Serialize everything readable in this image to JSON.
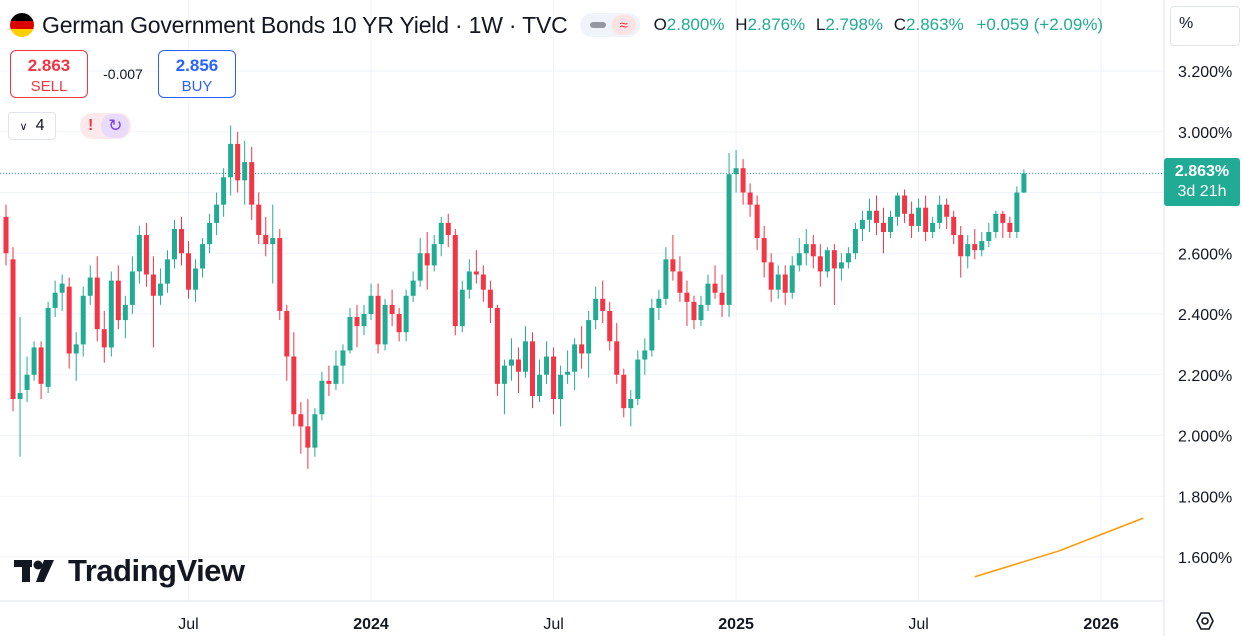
{
  "header": {
    "title": "German Government Bonds 10 YR Yield · 1W · TVC",
    "open_label": "O",
    "open": "2.800%",
    "high_label": "H",
    "high": "2.876%",
    "low_label": "L",
    "low": "2.798%",
    "close_label": "C",
    "close": "2.863%",
    "change": "+0.059 (+2.09%)",
    "flag_colors": [
      "#000000",
      "#dd0000",
      "#ffce00"
    ]
  },
  "trade": {
    "sell_price": "2.863",
    "sell_label": "SELL",
    "spread": "-0.007",
    "buy_price": "2.856",
    "buy_label": "BUY"
  },
  "indicators": {
    "count": "4",
    "alert_icon": "exclamation-icon",
    "sync_icon": "sync-icon"
  },
  "price_scale": {
    "unit": "%",
    "last_price": "2.863%",
    "countdown": "3d 21h"
  },
  "logo": {
    "text": "TradingView"
  },
  "colors": {
    "up": "#22ab94",
    "down": "#f23645",
    "ma": "#ff9800",
    "grid": "#f0f3fa"
  },
  "chart_data": {
    "type": "candlestick",
    "interval": "1W",
    "y_unit": "%",
    "ylim": [
      1.52,
      3.32
    ],
    "yticks": [
      "3.200%",
      "3.000%",
      "2.800%",
      "2.600%",
      "2.400%",
      "2.200%",
      "2.000%",
      "1.800%",
      "1.600%"
    ],
    "ytick_values": [
      3.2,
      3.0,
      2.8,
      2.6,
      2.4,
      2.2,
      2.0,
      1.8,
      1.6
    ],
    "xticks": [
      "Jul",
      "2024",
      "Jul",
      "2025",
      "Jul",
      "2026"
    ],
    "xtick_bold": [
      false,
      true,
      false,
      true,
      false,
      true
    ],
    "xtick_index": [
      26,
      52,
      78,
      104,
      130,
      156
    ],
    "last_price_line": 2.863,
    "ohlc": [
      [
        2.72,
        2.76,
        2.56,
        2.6
      ],
      [
        2.58,
        2.62,
        2.08,
        2.12
      ],
      [
        2.12,
        2.39,
        1.93,
        2.14
      ],
      [
        2.15,
        2.26,
        2.11,
        2.2
      ],
      [
        2.2,
        2.31,
        2.18,
        2.29
      ],
      [
        2.29,
        2.31,
        2.12,
        2.17
      ],
      [
        2.16,
        2.44,
        2.14,
        2.42
      ],
      [
        2.42,
        2.51,
        2.39,
        2.47
      ],
      [
        2.47,
        2.53,
        2.41,
        2.5
      ],
      [
        2.49,
        2.52,
        2.22,
        2.27
      ],
      [
        2.27,
        2.34,
        2.18,
        2.3
      ],
      [
        2.3,
        2.49,
        2.26,
        2.46
      ],
      [
        2.46,
        2.56,
        2.43,
        2.52
      ],
      [
        2.52,
        2.59,
        2.31,
        2.35
      ],
      [
        2.35,
        2.41,
        2.24,
        2.29
      ],
      [
        2.29,
        2.54,
        2.26,
        2.51
      ],
      [
        2.51,
        2.56,
        2.35,
        2.38
      ],
      [
        2.38,
        2.46,
        2.32,
        2.43
      ],
      [
        2.43,
        2.59,
        2.4,
        2.54
      ],
      [
        2.54,
        2.69,
        2.5,
        2.66
      ],
      [
        2.66,
        2.7,
        2.49,
        2.53
      ],
      [
        2.53,
        2.59,
        2.29,
        2.46
      ],
      [
        2.46,
        2.55,
        2.43,
        2.5
      ],
      [
        2.5,
        2.61,
        2.47,
        2.58
      ],
      [
        2.58,
        2.71,
        2.55,
        2.68
      ],
      [
        2.68,
        2.72,
        2.56,
        2.6
      ],
      [
        2.6,
        2.64,
        2.45,
        2.48
      ],
      [
        2.48,
        2.58,
        2.44,
        2.55
      ],
      [
        2.55,
        2.65,
        2.52,
        2.63
      ],
      [
        2.63,
        2.73,
        2.6,
        2.7
      ],
      [
        2.7,
        2.8,
        2.66,
        2.76
      ],
      [
        2.76,
        2.88,
        2.72,
        2.85
      ],
      [
        2.85,
        3.02,
        2.79,
        2.96
      ],
      [
        2.96,
        3.0,
        2.8,
        2.84
      ],
      [
        2.84,
        2.97,
        2.76,
        2.9
      ],
      [
        2.9,
        2.95,
        2.71,
        2.76
      ],
      [
        2.76,
        2.8,
        2.63,
        2.66
      ],
      [
        2.66,
        2.72,
        2.59,
        2.63
      ],
      [
        2.63,
        2.76,
        2.5,
        2.65
      ],
      [
        2.65,
        2.68,
        2.38,
        2.41
      ],
      [
        2.41,
        2.43,
        2.18,
        2.26
      ],
      [
        2.26,
        2.34,
        2.03,
        2.07
      ],
      [
        2.07,
        2.11,
        1.94,
        2.03
      ],
      [
        2.03,
        2.12,
        1.89,
        1.96
      ],
      [
        1.96,
        2.09,
        1.93,
        2.07
      ],
      [
        2.07,
        2.21,
        2.05,
        2.18
      ],
      [
        2.18,
        2.23,
        2.13,
        2.17
      ],
      [
        2.17,
        2.28,
        2.15,
        2.23
      ],
      [
        2.23,
        2.3,
        2.17,
        2.28
      ],
      [
        2.28,
        2.42,
        2.27,
        2.39
      ],
      [
        2.39,
        2.43,
        2.29,
        2.36
      ],
      [
        2.36,
        2.43,
        2.33,
        2.4
      ],
      [
        2.4,
        2.5,
        2.38,
        2.46
      ],
      [
        2.46,
        2.5,
        2.27,
        2.3
      ],
      [
        2.3,
        2.45,
        2.28,
        2.43
      ],
      [
        2.43,
        2.48,
        2.36,
        2.4
      ],
      [
        2.4,
        2.42,
        2.31,
        2.34
      ],
      [
        2.34,
        2.48,
        2.31,
        2.46
      ],
      [
        2.46,
        2.54,
        2.44,
        2.51
      ],
      [
        2.51,
        2.65,
        2.49,
        2.6
      ],
      [
        2.6,
        2.67,
        2.48,
        2.56
      ],
      [
        2.56,
        2.66,
        2.54,
        2.63
      ],
      [
        2.63,
        2.72,
        2.59,
        2.7
      ],
      [
        2.7,
        2.73,
        2.62,
        2.66
      ],
      [
        2.66,
        2.68,
        2.33,
        2.36
      ],
      [
        2.36,
        2.51,
        2.34,
        2.48
      ],
      [
        2.48,
        2.58,
        2.45,
        2.54
      ],
      [
        2.54,
        2.61,
        2.5,
        2.53
      ],
      [
        2.53,
        2.56,
        2.44,
        2.48
      ],
      [
        2.48,
        2.51,
        2.37,
        2.42
      ],
      [
        2.42,
        2.43,
        2.13,
        2.17
      ],
      [
        2.17,
        2.25,
        2.07,
        2.23
      ],
      [
        2.23,
        2.32,
        2.18,
        2.25
      ],
      [
        2.25,
        2.29,
        2.14,
        2.21
      ],
      [
        2.21,
        2.36,
        2.19,
        2.31
      ],
      [
        2.31,
        2.34,
        2.09,
        2.13
      ],
      [
        2.13,
        2.25,
        2.11,
        2.2
      ],
      [
        2.2,
        2.31,
        2.17,
        2.26
      ],
      [
        2.26,
        2.29,
        2.07,
        2.12
      ],
      [
        2.12,
        2.23,
        2.03,
        2.2
      ],
      [
        2.2,
        2.28,
        2.17,
        2.21
      ],
      [
        2.21,
        2.32,
        2.15,
        2.3
      ],
      [
        2.3,
        2.36,
        2.22,
        2.27
      ],
      [
        2.27,
        2.41,
        2.19,
        2.38
      ],
      [
        2.38,
        2.49,
        2.35,
        2.45
      ],
      [
        2.45,
        2.51,
        2.37,
        2.41
      ],
      [
        2.41,
        2.44,
        2.28,
        2.31
      ],
      [
        2.31,
        2.37,
        2.17,
        2.2
      ],
      [
        2.2,
        2.22,
        2.06,
        2.09
      ],
      [
        2.09,
        2.15,
        2.03,
        2.12
      ],
      [
        2.12,
        2.28,
        2.1,
        2.25
      ],
      [
        2.25,
        2.32,
        2.2,
        2.28
      ],
      [
        2.28,
        2.45,
        2.26,
        2.42
      ],
      [
        2.42,
        2.48,
        2.38,
        2.45
      ],
      [
        2.45,
        2.62,
        2.43,
        2.58
      ],
      [
        2.58,
        2.66,
        2.51,
        2.54
      ],
      [
        2.54,
        2.59,
        2.44,
        2.47
      ],
      [
        2.47,
        2.51,
        2.36,
        2.44
      ],
      [
        2.44,
        2.46,
        2.35,
        2.38
      ],
      [
        2.38,
        2.46,
        2.36,
        2.43
      ],
      [
        2.43,
        2.53,
        2.41,
        2.5
      ],
      [
        2.5,
        2.56,
        2.45,
        2.47
      ],
      [
        2.47,
        2.53,
        2.39,
        2.43
      ],
      [
        2.43,
        2.93,
        2.39,
        2.86
      ],
      [
        2.86,
        2.94,
        2.8,
        2.88
      ],
      [
        2.88,
        2.91,
        2.76,
        2.8
      ],
      [
        2.8,
        2.83,
        2.72,
        2.76
      ],
      [
        2.76,
        2.79,
        2.61,
        2.65
      ],
      [
        2.65,
        2.69,
        2.52,
        2.57
      ],
      [
        2.57,
        2.6,
        2.44,
        2.48
      ],
      [
        2.48,
        2.56,
        2.45,
        2.53
      ],
      [
        2.53,
        2.56,
        2.43,
        2.47
      ],
      [
        2.47,
        2.59,
        2.45,
        2.56
      ],
      [
        2.56,
        2.65,
        2.54,
        2.6
      ],
      [
        2.6,
        2.68,
        2.56,
        2.63
      ],
      [
        2.63,
        2.66,
        2.55,
        2.59
      ],
      [
        2.59,
        2.63,
        2.49,
        2.54
      ],
      [
        2.54,
        2.62,
        2.52,
        2.61
      ],
      [
        2.61,
        2.63,
        2.43,
        2.55
      ],
      [
        2.55,
        2.6,
        2.51,
        2.57
      ],
      [
        2.57,
        2.62,
        2.55,
        2.6
      ],
      [
        2.6,
        2.7,
        2.58,
        2.68
      ],
      [
        2.68,
        2.74,
        2.64,
        2.71
      ],
      [
        2.71,
        2.78,
        2.67,
        2.74
      ],
      [
        2.74,
        2.79,
        2.66,
        2.7
      ],
      [
        2.7,
        2.75,
        2.6,
        2.67
      ],
      [
        2.67,
        2.74,
        2.65,
        2.72
      ],
      [
        2.72,
        2.8,
        2.69,
        2.79
      ],
      [
        2.79,
        2.81,
        2.7,
        2.73
      ],
      [
        2.73,
        2.77,
        2.65,
        2.69
      ],
      [
        2.69,
        2.78,
        2.67,
        2.75
      ],
      [
        2.75,
        2.79,
        2.64,
        2.67
      ],
      [
        2.67,
        2.72,
        2.65,
        2.7
      ],
      [
        2.7,
        2.79,
        2.68,
        2.76
      ],
      [
        2.76,
        2.78,
        2.68,
        2.72
      ],
      [
        2.72,
        2.74,
        2.63,
        2.66
      ],
      [
        2.66,
        2.69,
        2.52,
        2.59
      ],
      [
        2.59,
        2.66,
        2.55,
        2.63
      ],
      [
        2.63,
        2.68,
        2.58,
        2.61
      ],
      [
        2.61,
        2.67,
        2.59,
        2.64
      ],
      [
        2.64,
        2.7,
        2.62,
        2.67
      ],
      [
        2.67,
        2.74,
        2.65,
        2.73
      ],
      [
        2.73,
        2.74,
        2.65,
        2.7
      ],
      [
        2.7,
        2.72,
        2.65,
        2.67
      ],
      [
        2.67,
        2.82,
        2.65,
        2.8
      ],
      [
        2.8,
        2.876,
        2.798,
        2.863
      ]
    ],
    "ma_line": [
      [
        138,
        1.535
      ],
      [
        150,
        1.62
      ],
      [
        162,
        1.728
      ]
    ]
  }
}
